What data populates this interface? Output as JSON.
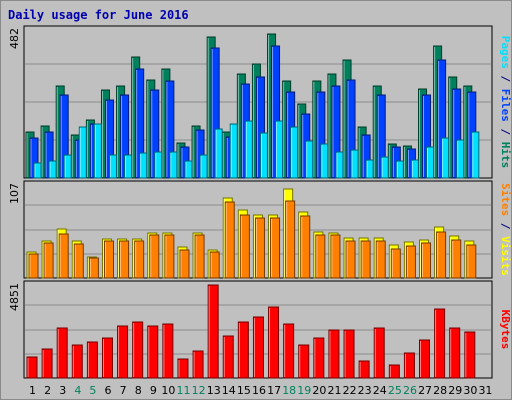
{
  "chart_data": {
    "type": "bar",
    "title": "Daily usage for June 2016",
    "categories": [
      "1",
      "2",
      "3",
      "4",
      "5",
      "6",
      "7",
      "8",
      "9",
      "10",
      "11",
      "12",
      "13",
      "14",
      "15",
      "16",
      "17",
      "18",
      "19",
      "20",
      "21",
      "22",
      "23",
      "24",
      "25",
      "26",
      "27",
      "28",
      "29",
      "30",
      "31"
    ],
    "weekend_days": [
      "4",
      "5",
      "11",
      "12",
      "18",
      "19",
      "25",
      "26"
    ],
    "panels": [
      {
        "id": "hits-files-pages",
        "ymax": 482,
        "ymax_label": "482",
        "right_labels": [
          {
            "text": "Pages",
            "color": "#00e0ff"
          },
          {
            "text": " / ",
            "color": "#000080"
          },
          {
            "text": "Files",
            "color": "#0040ff"
          },
          {
            "text": " / ",
            "color": "#000080"
          },
          {
            "text": "Hits",
            "color": "#00805c"
          }
        ],
        "series": [
          {
            "name": "Hits",
            "color": "#00805c",
            "values": [
              150,
              170,
              300,
              140,
              190,
              285,
              300,
              395,
              320,
              355,
              115,
              170,
              460,
              150,
              340,
              370,
              470,
              315,
              240,
              315,
              340,
              385,
              165,
              300,
              110,
              105,
              290,
              429,
              330,
              300,
              0
            ]
          },
          {
            "name": "Files",
            "color": "#0040ff",
            "values": [
              130,
              150,
              270,
              125,
              175,
              255,
              270,
              355,
              285,
              315,
              100,
              155,
              425,
              135,
              305,
              330,
              430,
              280,
              210,
              280,
              300,
              320,
              140,
              270,
              100,
              95,
              270,
              385,
              290,
              280,
              0
            ]
          },
          {
            "name": "Pages",
            "color": "#00e0ff",
            "values": [
              50,
              55,
              75,
              165,
              175,
              75,
              75,
              80,
              85,
              85,
              55,
              75,
              160,
              175,
              185,
              145,
              185,
              165,
              120,
              110,
              85,
              90,
              60,
              70,
              55,
              60,
              100,
              130,
              125,
              150,
              0
            ]
          }
        ]
      },
      {
        "id": "visits-sites",
        "ymax": 107,
        "ymax_label": "107",
        "right_labels": [
          {
            "text": "Sites",
            "color": "#ff8000"
          },
          {
            "text": " / ",
            "color": "#000080"
          },
          {
            "text": "Visits",
            "color": "#ffff00"
          }
        ],
        "series": [
          {
            "name": "Visits",
            "color": "#ffff00",
            "values": [
              30,
              43,
              56,
              42,
              24,
              45,
              45,
              45,
              52,
              52,
              36,
              52,
              32,
              92,
              78,
              73,
              73,
              102,
              76,
              53,
              52,
              46,
              46,
              46,
              38,
              41,
              44,
              59,
              48,
              42,
              0
            ]
          },
          {
            "name": "Sites",
            "color": "#ff8000",
            "values": [
              28,
              40,
              51,
              39,
              23,
              42,
              42,
              42,
              49,
              49,
              32,
              49,
              30,
              87,
              73,
              69,
              69,
              89,
              71,
              50,
              49,
              43,
              43,
              43,
              33,
              37,
              40,
              53,
              44,
              38,
              0
            ]
          }
        ]
      },
      {
        "id": "kbytes",
        "ymax": 4851,
        "ymax_label": "4851",
        "right_labels": [
          {
            "text": "KBytes",
            "color": "#ff0000"
          }
        ],
        "series": [
          {
            "name": "KBytes",
            "color": "#ff0000",
            "values": [
              1100,
              1500,
              2600,
              1700,
              1900,
              2100,
              2700,
              2900,
              2700,
              2800,
              1000,
              1400,
              4851,
              2200,
              2900,
              3200,
              3700,
              2800,
              1700,
              2100,
              2500,
              2500,
              900,
              2600,
              700,
              1300,
              2000,
              3600,
              2600,
              2400,
              0
            ]
          }
        ]
      }
    ]
  }
}
